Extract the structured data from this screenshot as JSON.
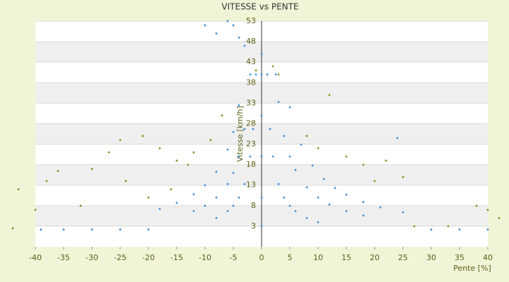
{
  "chart_data": {
    "type": "scatter",
    "title": "VITESSE vs PENTE",
    "xlabel": "Pente [%]",
    "ylabel": "Vitesse [km/h]",
    "xlim": [
      -40,
      40
    ],
    "xticks": [
      -40,
      -35,
      -30,
      -25,
      -20,
      -15,
      -10,
      -5,
      0,
      5,
      10,
      15,
      20,
      25,
      30,
      35,
      40
    ],
    "ylim": [
      -2,
      53
    ],
    "yticks": [
      3,
      8,
      13,
      18,
      23,
      28,
      33,
      38,
      43,
      48,
      53
    ],
    "grid": true,
    "series": [
      {
        "color": "#3d8fe0",
        "x": [
          1,
          1.5,
          2,
          3,
          4,
          5,
          6,
          8,
          10,
          2.5,
          3,
          4,
          5,
          6,
          8,
          10,
          12,
          15,
          18,
          5,
          7,
          9,
          11,
          13,
          15,
          18,
          21,
          25,
          -1,
          -1.5,
          -2,
          -3,
          -4,
          -5,
          -6,
          -8,
          -2,
          -3,
          -4,
          -5,
          -6,
          -8,
          -10,
          -12,
          -4,
          -5,
          -6,
          -8,
          -10,
          -12,
          -15,
          -18,
          -10,
          -8,
          -6,
          -5,
          -4,
          -3,
          -39,
          -35,
          -30,
          -25,
          -20,
          30,
          35,
          40,
          0,
          0,
          0,
          0,
          0,
          0,
          24
        ],
        "values": [
          40,
          26.7,
          20,
          13.3,
          10,
          8,
          6.7,
          5,
          4,
          40,
          33.3,
          25,
          20,
          16.7,
          12.5,
          10,
          8.3,
          6.7,
          5.6,
          32,
          22.9,
          17.8,
          14.5,
          12.3,
          10.7,
          8.9,
          7.6,
          6.4,
          40,
          26.7,
          20,
          13.3,
          10,
          8,
          6.7,
          5,
          40,
          26.7,
          20,
          16,
          13.3,
          10,
          8,
          6.7,
          32.5,
          26,
          21.7,
          16.3,
          13,
          10.8,
          8.7,
          7.2,
          52,
          50,
          53,
          52,
          49,
          47,
          2.2,
          2.2,
          2.2,
          2.2,
          2.2,
          2.2,
          2.2,
          2.2,
          3,
          10,
          20,
          30,
          40,
          45,
          24.5
        ]
      },
      {
        "color": "#8c8c1c",
        "x": [
          -38,
          -36,
          -30,
          -27,
          -25,
          -21,
          -18,
          -15,
          -12,
          -9,
          -20,
          -16,
          -24,
          -32,
          -40,
          -43,
          -44,
          38,
          40,
          42,
          25,
          22,
          18,
          15,
          12,
          2,
          3,
          -1,
          27,
          33,
          8,
          10,
          20,
          -7,
          -13
        ],
        "values": [
          14,
          16.5,
          17,
          21,
          24,
          25,
          22,
          19,
          21,
          24,
          10,
          12,
          14,
          8,
          7,
          12,
          2.5,
          8,
          7,
          5,
          15,
          19,
          18,
          20,
          35,
          42,
          40,
          41,
          3,
          3,
          25,
          22,
          14,
          30,
          18
        ]
      }
    ]
  }
}
